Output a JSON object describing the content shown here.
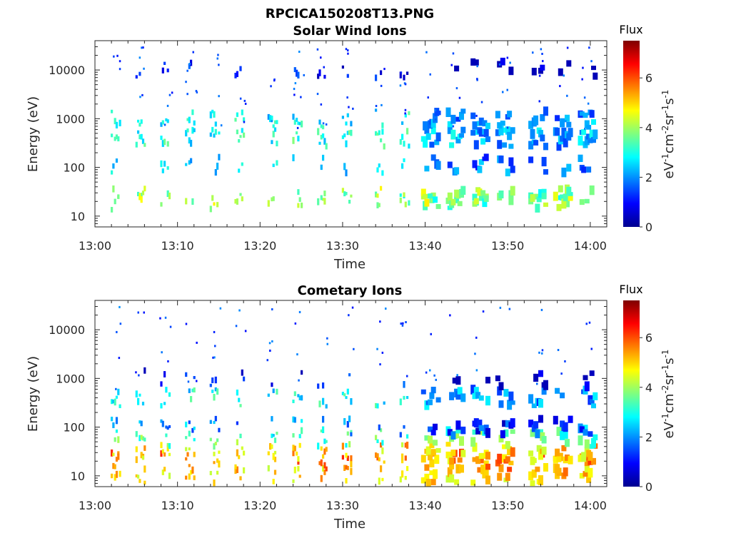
{
  "figure": {
    "title": "RPCICA150208T13.PNG"
  },
  "chart_data": [
    {
      "type": "heatmap",
      "title": "Solar Wind Ions",
      "xlabel": "Time",
      "ylabel": "Energy (eV)",
      "x_range": [
        "13:00",
        "14:02"
      ],
      "x_ticks": [
        "13:00",
        "13:10",
        "13:20",
        "13:30",
        "13:40",
        "13:50",
        "14:00"
      ],
      "y_scale": "log",
      "y_range": [
        6,
        40000
      ],
      "y_ticks": [
        10,
        100,
        1000,
        10000
      ],
      "y_tick_labels": [
        "10",
        "100",
        "1000",
        "10000"
      ],
      "colorbar": {
        "title": "Flux",
        "label": "eV-1cm-2sr-1s-1",
        "range": [
          0,
          7.5
        ],
        "ticks": [
          0,
          2,
          4,
          6
        ],
        "tick_labels": [
          "0",
          "2",
          "4",
          "6"
        ],
        "colormap": "jet"
      },
      "bands": [
        {
          "energy": 20,
          "flux": 3.5,
          "occupancy": 0.45
        },
        {
          "energy": 25,
          "flux": 4.0,
          "occupancy": 0.45
        },
        {
          "energy": 110,
          "flux": 2.5,
          "occupancy": 0.35
        },
        {
          "energy": 400,
          "flux": 3.0,
          "occupancy": 0.85
        },
        {
          "energy": 1000,
          "flux": 2.8,
          "occupancy": 0.6
        },
        {
          "energy": 10000,
          "flux": 1.0,
          "occupancy": 0.25
        }
      ],
      "pulse_times": [
        "13:02",
        "13:05",
        "13:08",
        "13:11",
        "13:14",
        "13:17",
        "13:21",
        "13:24",
        "13:27",
        "13:30",
        "13:34",
        "13:37",
        "13:40",
        "13:43",
        "13:46",
        "13:49",
        "13:53",
        "13:56",
        "13:59"
      ]
    },
    {
      "type": "heatmap",
      "title": "Cometary Ions",
      "xlabel": "Time",
      "ylabel": "Energy (eV)",
      "x_range": [
        "13:00",
        "14:02"
      ],
      "x_ticks": [
        "13:00",
        "13:10",
        "13:20",
        "13:30",
        "13:40",
        "13:50",
        "14:00"
      ],
      "y_scale": "log",
      "y_range": [
        6,
        40000
      ],
      "y_ticks": [
        10,
        100,
        1000,
        10000
      ],
      "y_tick_labels": [
        "10",
        "100",
        "1000",
        "10000"
      ],
      "colorbar": {
        "title": "Flux",
        "label": "eV-1cm-2sr-1s-1",
        "range": [
          0,
          7.5
        ],
        "ticks": [
          0,
          2,
          4,
          6
        ],
        "tick_labels": [
          "0",
          "2",
          "4",
          "6"
        ],
        "colormap": "jet"
      },
      "bands": [
        {
          "energy": 10,
          "flux": 5.0,
          "occupancy": 0.55
        },
        {
          "energy": 20,
          "flux": 5.5,
          "occupancy": 0.55
        },
        {
          "energy": 30,
          "flux": 5.0,
          "occupancy": 0.55
        },
        {
          "energy": 60,
          "flux": 3.5,
          "occupancy": 0.55
        },
        {
          "energy": 100,
          "flux": 2.0,
          "occupancy": 0.45
        },
        {
          "energy": 400,
          "flux": 2.8,
          "occupancy": 0.7
        },
        {
          "energy": 1000,
          "flux": 1.0,
          "occupancy": 0.15
        }
      ],
      "pulse_times": [
        "13:02",
        "13:05",
        "13:08",
        "13:11",
        "13:14",
        "13:17",
        "13:21",
        "13:24",
        "13:27",
        "13:30",
        "13:34",
        "13:37",
        "13:40",
        "13:43",
        "13:46",
        "13:49",
        "13:53",
        "13:56",
        "13:59"
      ]
    }
  ]
}
